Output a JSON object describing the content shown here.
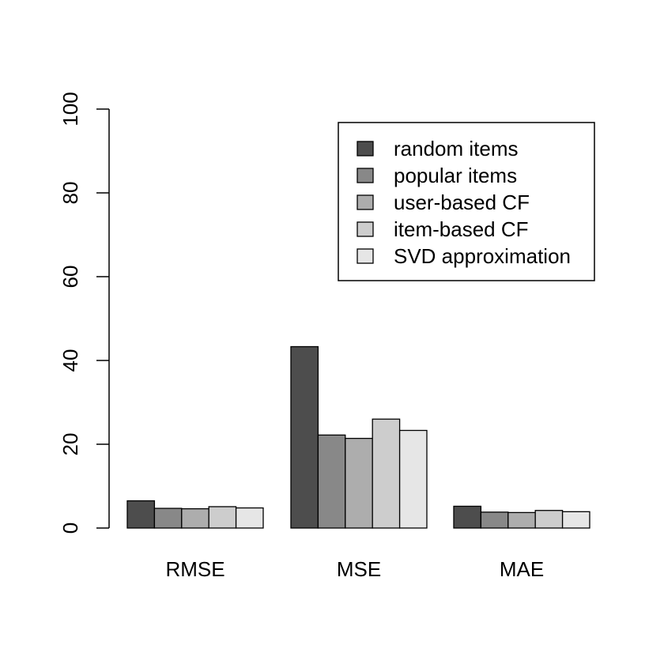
{
  "chart_data": {
    "type": "bar",
    "categories": [
      "RMSE",
      "MSE",
      "MAE"
    ],
    "series": [
      {
        "name": "random items",
        "values": [
          6.5,
          43.3,
          5.2
        ],
        "color": "#4d4d4d"
      },
      {
        "name": "popular items",
        "values": [
          4.7,
          22.2,
          3.8
        ],
        "color": "#888888"
      },
      {
        "name": "user-based CF",
        "values": [
          4.6,
          21.4,
          3.7
        ],
        "color": "#adadad"
      },
      {
        "name": "item-based CF",
        "values": [
          5.1,
          26.0,
          4.2
        ],
        "color": "#cdcdcd"
      },
      {
        "name": "SVD approximation",
        "values": [
          4.8,
          23.3,
          3.9
        ],
        "color": "#e6e6e6"
      }
    ],
    "ylim": [
      0,
      100
    ],
    "yticks": [
      "0",
      "20",
      "40",
      "60",
      "80",
      "100"
    ],
    "grid": false,
    "legend_position": "top-right"
  }
}
